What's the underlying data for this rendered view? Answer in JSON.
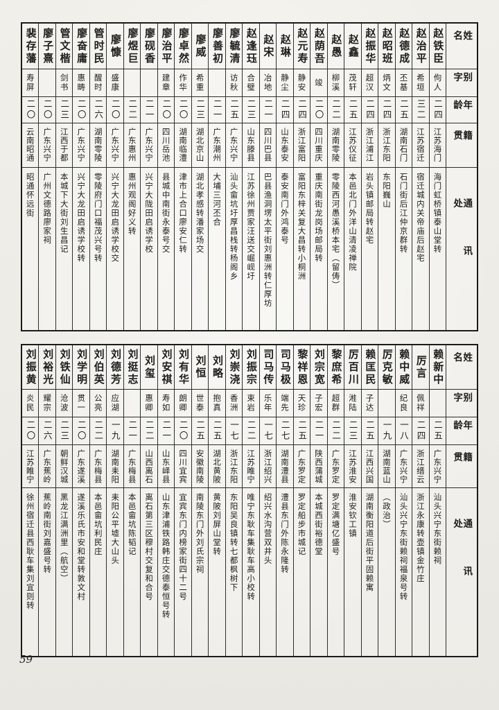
{
  "page": {
    "number": "59"
  },
  "headers": {
    "name": "姓名",
    "courtesy": "别字",
    "age": "年龄",
    "native": "籍贯",
    "contact": "通讯处"
  },
  "tables": [
    {
      "entries": [
        {
          "name": "裴存藩",
          "courtesy": "寿屏",
          "age": "二〇",
          "native": "云南昭通",
          "contact": "昭通怀远街"
        },
        {
          "name": "廖子熹",
          "courtesy": "",
          "age": "二〇",
          "native": "广东兴宁",
          "contact": "广州文德路廖家祠"
        },
        {
          "name": "管文楷",
          "courtesy": "剑书",
          "age": "二三",
          "native": "江西于都",
          "contact": "本城下大街刘生昌记"
        },
        {
          "name": "廖奋庸",
          "courtesy": "惠畴",
          "age": "二〇",
          "native": "广东兴宁",
          "contact": "兴宁大龙田启诱学校转"
        },
        {
          "name": "管时民",
          "courtesy": "醒时",
          "age": "二六",
          "native": "湖南零陵",
          "contact": "零陵府门口福茂兴号转"
        },
        {
          "name": "廖慷",
          "courtesy": "盛康",
          "age": "二〇",
          "native": "广东兴宁",
          "contact": "兴宁大龙田启诱学校交"
        },
        {
          "name": "廖煜巨",
          "courtesy": "",
          "age": "二二",
          "native": "广东惠州",
          "contact": "惠州观阁好义转"
        },
        {
          "name": "廖砚香",
          "courtesy": "",
          "age": "二一",
          "native": "广东兴宁",
          "contact": "兴宁大陇田启诱学校"
        },
        {
          "name": "廖治平",
          "courtesy": "建章",
          "age": "二〇",
          "native": "四川岳池",
          "contact": "县城中南街永泰号交"
        },
        {
          "name": "廖卓然",
          "courtesy": "作华",
          "age": "二〇",
          "native": "湖南临澧",
          "contact": "津市上合口廖安仁转"
        },
        {
          "name": "廖威",
          "courtesy": "希重",
          "age": "二三",
          "native": "湖北京山",
          "contact": "湖北孝感转潘家场交"
        },
        {
          "name": "廖善初",
          "courtesy": "",
          "age": "二一",
          "native": "广东潮州",
          "contact": "大埔三河丕合"
        },
        {
          "name": "廖毓清",
          "courtesy": "访秋",
          "age": "二五",
          "native": "广东兴宁",
          "contact": "汕头畲坑圩厚昌栈转杨阁乡"
        },
        {
          "name": "赵逢珏",
          "courtesy": "合璧",
          "age": "二三",
          "native": "山东滕县",
          "contact": "江苏徐州贾家汪送交崛岘圩"
        },
        {
          "name": "赵宋",
          "courtesy": "冶地",
          "age": "二一",
          "native": "四川巴县",
          "contact": "巴县渔洞塄太平街刘惠洲转仁厚坊"
        },
        {
          "name": "赵琳",
          "courtesy": "静尘",
          "age": "二四",
          "native": "山东泰安",
          "contact": "泰安南门外鸿泰号"
        },
        {
          "name": "赵元寿",
          "courtesy": "静安",
          "age": "二四",
          "native": "浙江富阳",
          "contact": "富阳东梓关复大昌转小桐洲"
        },
        {
          "name": "赵荫吾",
          "courtesy": "竣",
          "age": "二〇",
          "native": "四川重庆",
          "contact": "重庆南街龙岗场邮局转"
        },
        {
          "name": "赵愚",
          "courtesy": "柳溪",
          "age": "二二",
          "native": "湖南零陵",
          "contact": "零陵西河愚溪桥本宅（留俦）"
        },
        {
          "name": "赵鑫",
          "courtesy": "茂轩",
          "age": "二五",
          "native": "江苏仪征",
          "contact": "本邑北门外洋山清凌禅院"
        },
        {
          "name": "赵振华",
          "courtesy": "超汉",
          "age": "二四",
          "native": "浙江浦江",
          "contact": "岩头镇邮局转赵宅"
        },
        {
          "name": "赵昭班",
          "courtesy": "炳文",
          "age": "二四",
          "native": "浙江东阳",
          "contact": "东阳巍山"
        },
        {
          "name": "赵德成",
          "courtesy": "丕基",
          "age": "二五",
          "native": "湖南石门",
          "contact": "石门街后江仲京群转"
        },
        {
          "name": "赵治平",
          "courtesy": "希垣",
          "age": "三二",
          "native": "江苏宿迁",
          "contact": "宿迁城内关帝庙后赵宅"
        },
        {
          "name": "赵铁臣",
          "courtesy": "佝人",
          "age": "二四",
          "native": "江苏海门",
          "contact": "海门虹桥镇泰山堂转"
        }
      ]
    },
    {
      "entries": [
        {
          "name": "刘振黄",
          "courtesy": "炎民",
          "age": "二〇",
          "native": "江苏睢宁",
          "contact": "徐州宿迁县西耿车集刘宜则转"
        },
        {
          "name": "刘裕光",
          "courtesy": "耀宗",
          "age": "二六",
          "native": "广东蕉岭",
          "contact": "蕉岭南街刘嘉盛号转"
        },
        {
          "name": "刘铁仙",
          "courtesy": "沧波",
          "age": "二三",
          "native": "朝鲜汉城",
          "contact": "黑龙江满洲里（航空）"
        },
        {
          "name": "刘学明",
          "courtesy": "贯一",
          "age": "二〇",
          "native": "广东遂溪",
          "contact": "遂溪乐氏市安和堂转敦文村"
        },
        {
          "name": "刘伯英",
          "courtesy": "公亮",
          "age": "二二",
          "native": "广东梅县",
          "contact": "本邑畲坑利民庄"
        },
        {
          "name": "刘德芳",
          "courtesy": "应湖",
          "age": "一九",
          "native": "湖南耒阳",
          "contact": "耒阳公平墟大山头"
        },
        {
          "name": "刘挺志",
          "courtesy": "",
          "age": "二一",
          "native": "广东梅县",
          "contact": "本邑畲坑陈韬记"
        },
        {
          "name": "刘玺",
          "courtesy": "惠卿",
          "age": "二二",
          "native": "山西离石",
          "contact": "离石第三区穆村交复和合号"
        },
        {
          "name": "刘安祺",
          "courtesy": "寿如",
          "age": "二一",
          "native": "山东峄县",
          "contact": "山东津浦铁路韩庄交德泰恒号转"
        },
        {
          "name": "刘有华",
          "courtesy": "朗卿",
          "age": "二〇",
          "native": "四川宜宾",
          "contact": "宜宾东门内榜家街四十二号"
        },
        {
          "name": "刘恒",
          "courtesy": "世泰",
          "age": "二五",
          "native": "安徽南陵",
          "contact": "南陵东门外刘氏宗祠"
        },
        {
          "name": "刘略",
          "courtesy": "抱真",
          "age": "二五",
          "native": "湖北黄陂",
          "contact": "黄陂刘屏山堂转"
        },
        {
          "name": "刘崇浇",
          "courtesy": "香洲",
          "age": "一七",
          "native": "浙江东阳",
          "contact": "东阳吴良镇转七都枫树下"
        },
        {
          "name": "刘振宗",
          "courtesy": "束岩",
          "age": "二二",
          "native": "江苏睢宁",
          "contact": "唯宁东耿车集耿车高小校转"
        },
        {
          "name": "司马传",
          "courtesy": "乐年",
          "age": "一七",
          "native": "浙江绍兴",
          "contact": "绍兴水沟营双井头"
        },
        {
          "name": "司马极",
          "courtesy": "端先",
          "age": "二七",
          "native": "湖南澧县",
          "contact": "澧县东门外陈永隆转"
        },
        {
          "name": "黎祥恩",
          "courtesy": "天珍",
          "age": "二五",
          "native": "广东罗定",
          "contact": "罗定船步市城记"
        },
        {
          "name": "刘宗宽",
          "courtesy": "子宏",
          "age": "二一",
          "native": "陕西蒲城",
          "contact": "本城西街裕德堂"
        },
        {
          "name": "黎庶希",
          "courtesy": "超群",
          "age": "二二",
          "native": "广东罗定",
          "contact": "罗定满塘亿盛号"
        },
        {
          "name": "厉百川",
          "courtesy": "溎陆",
          "age": "二三",
          "native": "江苏淮安",
          "contact": "淮安钦工镇"
        },
        {
          "name": "赖匡民",
          "courtesy": "子达",
          "age": "二五",
          "native": "江西兴国",
          "contact": "湖南衡阳道后街平固赖寓"
        },
        {
          "name": "厉克敏",
          "courtesy": "",
          "age": "一九",
          "native": "湖南蓝山",
          "contact": "（政治）"
        },
        {
          "name": "赖中威",
          "courtesy": "纪良",
          "age": "一八",
          "native": "广东兴宁",
          "contact": "汕头兴宁东街赖祠福泉号转"
        },
        {
          "name": "厉言",
          "courtesy": "佩祥",
          "age": "二四",
          "native": "浙江缙云",
          "contact": "浙江永康转壶镇金竹庄"
        },
        {
          "name": "赖新中",
          "courtesy": "",
          "age": "二五",
          "native": "广东兴宁",
          "contact": "汕头兴宁东街赖祠"
        }
      ]
    }
  ]
}
